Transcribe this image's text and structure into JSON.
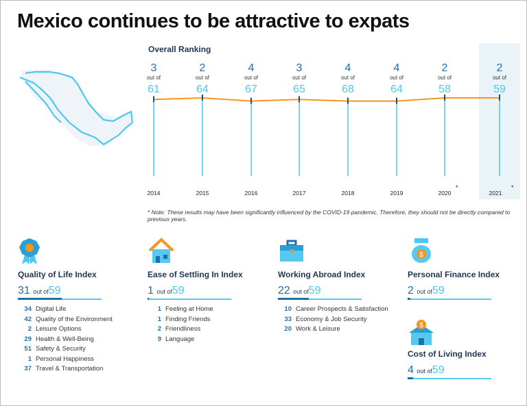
{
  "title": "Mexico continues to be attractive to expats",
  "chart_data": {
    "type": "line",
    "title": "Overall Ranking",
    "categories": [
      "2014",
      "2015",
      "2016",
      "2017",
      "2018",
      "2019",
      "2020",
      "2021"
    ],
    "ranks": [
      3,
      2,
      4,
      3,
      4,
      4,
      2,
      2
    ],
    "totals": [
      61,
      64,
      67,
      65,
      68,
      64,
      58,
      59
    ],
    "out_of_label": "out of",
    "asterisks": [
      "",
      "",
      "",
      "",
      "",
      "",
      "*",
      "*"
    ],
    "highlight": "2021",
    "line_color": "#f7941d",
    "stem_color": "#4cc7ef"
  },
  "note": "* Note: These results may have been significantly influenced by the COVID-19 pandemic. Therefore, they should not be directly compared to previous years.",
  "indices": [
    {
      "title": "Quality of Life Index",
      "rank": "31",
      "out_of": "out of",
      "total": "59",
      "icon": "medal-icon",
      "items": [
        {
          "v": "34",
          "l": "Digital Life"
        },
        {
          "v": "42",
          "l": "Quality of the Environment"
        },
        {
          "v": "2",
          "l": "Leisure Options"
        },
        {
          "v": "29",
          "l": "Health & Well-Being"
        },
        {
          "v": "51",
          "l": "Safety & Security"
        },
        {
          "v": "1",
          "l": "Personal Happiness"
        },
        {
          "v": "37",
          "l": "Travel & Transportation"
        }
      ]
    },
    {
      "title": "Ease of Settling In Index",
      "rank": "1",
      "out_of": "out of",
      "total": "59",
      "icon": "house-icon",
      "items": [
        {
          "v": "1",
          "l": "Feeling at Home"
        },
        {
          "v": "1",
          "l": "Finding Friends"
        },
        {
          "v": "2",
          "l": "Friendliness"
        },
        {
          "v": "9",
          "l": "Language"
        }
      ]
    },
    {
      "title": "Working Abroad Index",
      "rank": "22",
      "out_of": "out of",
      "total": "59",
      "icon": "briefcase-icon",
      "items": [
        {
          "v": "10",
          "l": "Career Prospects & Satisfaction"
        },
        {
          "v": "33",
          "l": "Economy & Job Security"
        },
        {
          "v": "20",
          "l": "Work & Leisure"
        }
      ]
    },
    {
      "title": "Personal Finance Index",
      "rank": "2",
      "out_of": "out of",
      "total": "59",
      "icon": "money-bag-icon",
      "items": []
    },
    {
      "title": "Cost of Living Index",
      "rank": "4",
      "out_of": "out of",
      "total": "59",
      "icon": "house-dollar-icon",
      "items": []
    }
  ]
}
